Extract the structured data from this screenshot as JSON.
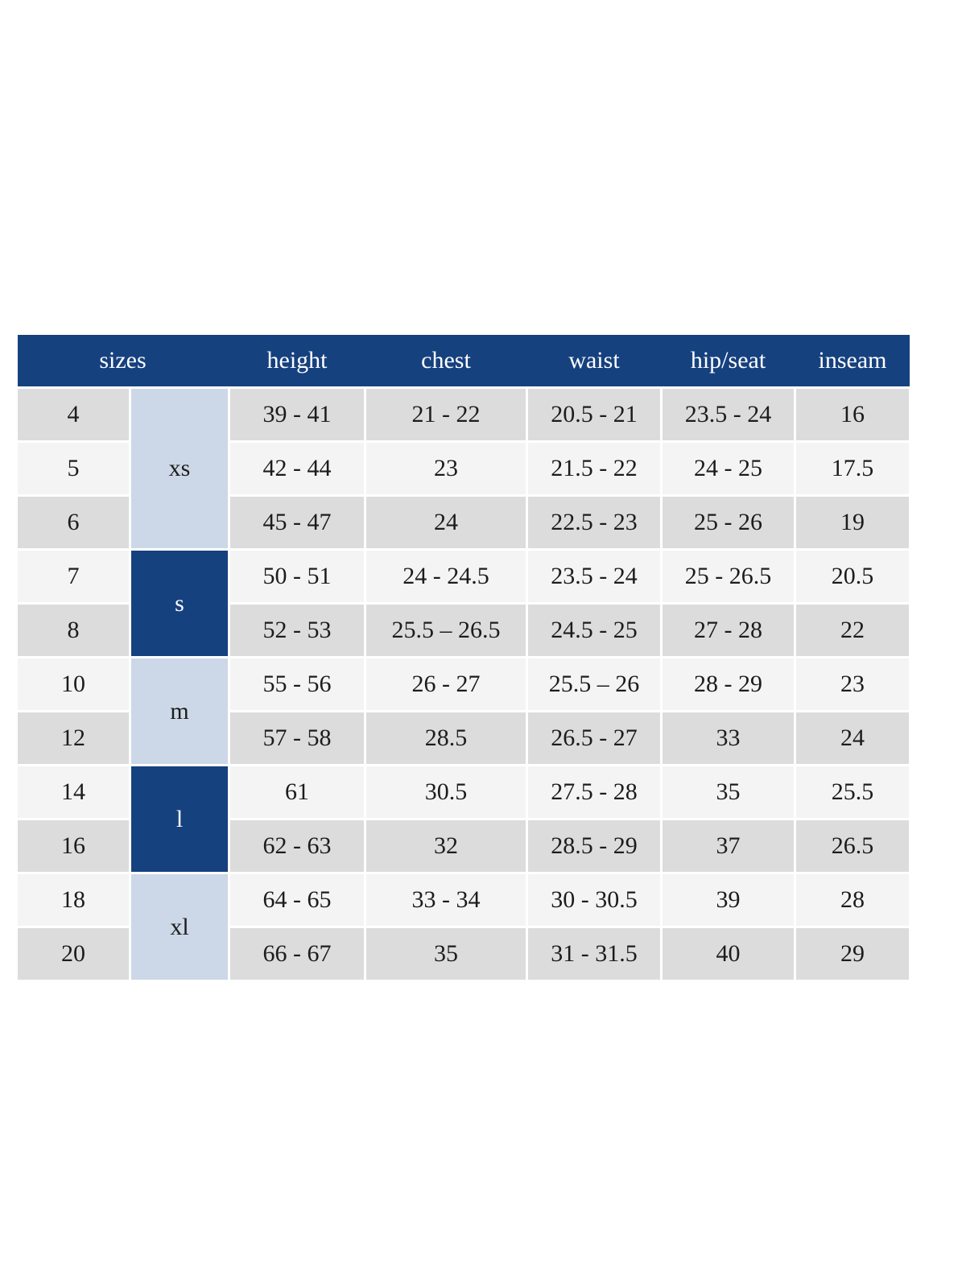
{
  "page": {
    "background": "#ffffff"
  },
  "table": {
    "columns": [
      "sizes",
      "height",
      "chest",
      "waist",
      "hip/seat",
      "inseam"
    ],
    "colors": {
      "header_bg": "#16417f",
      "header_text": "#ffffff",
      "group_dark_bg": "#16417f",
      "group_light_bg": "#ccd8e7",
      "row_gray_bg": "#dcdcdc",
      "row_light_bg": "#f4f4f4",
      "cell_text": "#1c1c1c"
    },
    "groups": [
      {
        "label": "xs",
        "span": 3,
        "tone": "light"
      },
      {
        "label": "s",
        "span": 2,
        "tone": "dark"
      },
      {
        "label": "m",
        "span": 2,
        "tone": "light"
      },
      {
        "label": "l",
        "span": 2,
        "tone": "dark"
      },
      {
        "label": "xl",
        "span": 2,
        "tone": "light"
      }
    ],
    "rows": [
      {
        "size": "4",
        "height": "39 - 41",
        "chest": "21 - 22",
        "waist": "20.5 - 21",
        "hip_seat": "23.5 - 24",
        "inseam": "16"
      },
      {
        "size": "5",
        "height": "42 - 44",
        "chest": "23",
        "waist": "21.5 - 22",
        "hip_seat": "24 - 25",
        "inseam": "17.5"
      },
      {
        "size": "6",
        "height": "45 - 47",
        "chest": "24",
        "waist": "22.5 - 23",
        "hip_seat": "25 - 26",
        "inseam": "19"
      },
      {
        "size": "7",
        "height": "50 - 51",
        "chest": "24 - 24.5",
        "waist": "23.5 - 24",
        "hip_seat": "25 - 26.5",
        "inseam": "20.5"
      },
      {
        "size": "8",
        "height": "52 - 53",
        "chest": "25.5 – 26.5",
        "waist": "24.5 - 25",
        "hip_seat": "27 - 28",
        "inseam": "22"
      },
      {
        "size": "10",
        "height": "55 - 56",
        "chest": "26 - 27",
        "waist": "25.5 – 26",
        "hip_seat": "28 - 29",
        "inseam": "23"
      },
      {
        "size": "12",
        "height": "57 - 58",
        "chest": "28.5",
        "waist": "26.5 - 27",
        "hip_seat": "33",
        "inseam": "24"
      },
      {
        "size": "14",
        "height": "61",
        "chest": "30.5",
        "waist": "27.5 - 28",
        "hip_seat": "35",
        "inseam": "25.5"
      },
      {
        "size": "16",
        "height": "62 - 63",
        "chest": "32",
        "waist": "28.5 - 29",
        "hip_seat": "37",
        "inseam": "26.5"
      },
      {
        "size": "18",
        "height": "64 - 65",
        "chest": "33 - 34",
        "waist": "30 - 30.5",
        "hip_seat": "39",
        "inseam": "28"
      },
      {
        "size": "20",
        "height": "66 - 67",
        "chest": "35",
        "waist": "31 - 31.5",
        "hip_seat": "40",
        "inseam": "29"
      }
    ]
  }
}
